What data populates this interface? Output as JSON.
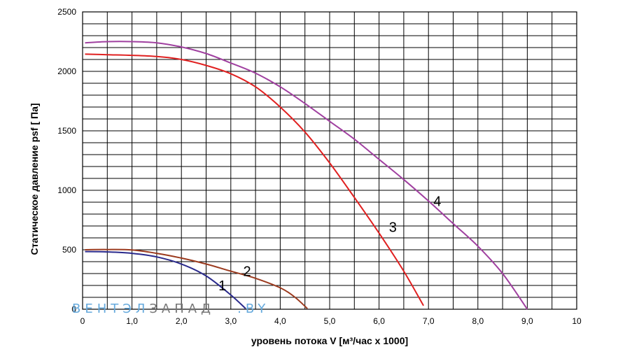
{
  "chart_data": {
    "type": "line",
    "xlabel": "уровень потока  V [м³/час х 1000]",
    "ylabel": "Статическое давление  psf [ Па]",
    "xlim": [
      0,
      10
    ],
    "ylim": [
      0,
      2500
    ],
    "x_ticks": [
      "0",
      "1,0",
      "2,0",
      "3,0",
      "4,0",
      "5,0",
      "6,0",
      "7,0",
      "8,0",
      "9,0",
      "10"
    ],
    "y_ticks": [
      "0",
      "500",
      "1000",
      "1500",
      "2000",
      "2500"
    ],
    "grid": true,
    "series": [
      {
        "name": "1",
        "color": "#2a2a8c",
        "points": [
          [
            0.05,
            485
          ],
          [
            0.5,
            482
          ],
          [
            1.0,
            470
          ],
          [
            1.5,
            440
          ],
          [
            2.0,
            380
          ],
          [
            2.5,
            280
          ],
          [
            3.0,
            120
          ],
          [
            3.3,
            5
          ]
        ]
      },
      {
        "name": "2",
        "color": "#9b3a1e",
        "points": [
          [
            0.05,
            500
          ],
          [
            0.5,
            502
          ],
          [
            1.0,
            498
          ],
          [
            1.5,
            470
          ],
          [
            2.0,
            430
          ],
          [
            2.5,
            380
          ],
          [
            3.0,
            320
          ],
          [
            3.5,
            260
          ],
          [
            4.0,
            180
          ],
          [
            4.3,
            100
          ],
          [
            4.55,
            5
          ]
        ]
      },
      {
        "name": "3",
        "color": "#e02020",
        "points": [
          [
            0.05,
            2145
          ],
          [
            0.5,
            2140
          ],
          [
            1.0,
            2135
          ],
          [
            1.5,
            2125
          ],
          [
            2.0,
            2100
          ],
          [
            2.5,
            2050
          ],
          [
            3.0,
            1980
          ],
          [
            3.5,
            1870
          ],
          [
            4.0,
            1700
          ],
          [
            4.5,
            1490
          ],
          [
            5.0,
            1230
          ],
          [
            5.5,
            940
          ],
          [
            6.0,
            640
          ],
          [
            6.5,
            320
          ],
          [
            6.9,
            30
          ]
        ]
      },
      {
        "name": "4",
        "color": "#a040a0",
        "points": [
          [
            0.05,
            2240
          ],
          [
            0.5,
            2250
          ],
          [
            1.0,
            2250
          ],
          [
            1.5,
            2240
          ],
          [
            2.0,
            2205
          ],
          [
            2.5,
            2150
          ],
          [
            3.0,
            2070
          ],
          [
            3.5,
            1985
          ],
          [
            4.0,
            1870
          ],
          [
            4.5,
            1730
          ],
          [
            5.0,
            1580
          ],
          [
            5.5,
            1430
          ],
          [
            6.0,
            1260
          ],
          [
            6.5,
            1090
          ],
          [
            7.0,
            910
          ],
          [
            7.5,
            720
          ],
          [
            8.0,
            530
          ],
          [
            8.5,
            300
          ],
          [
            9.0,
            0
          ]
        ]
      }
    ],
    "annotations": [
      {
        "text": "1",
        "x": 2.75,
        "y": 200
      },
      {
        "text": "2",
        "x": 3.25,
        "y": 320
      },
      {
        "text": "3",
        "x": 6.2,
        "y": 690
      },
      {
        "text": "4",
        "x": 7.1,
        "y": 910
      }
    ]
  },
  "watermark": {
    "part1": "ВЕНТЭЛ",
    "part2": "ЗАПАД",
    "part3": ".BY",
    "color1": "#66aadd",
    "color2": "#777777"
  }
}
